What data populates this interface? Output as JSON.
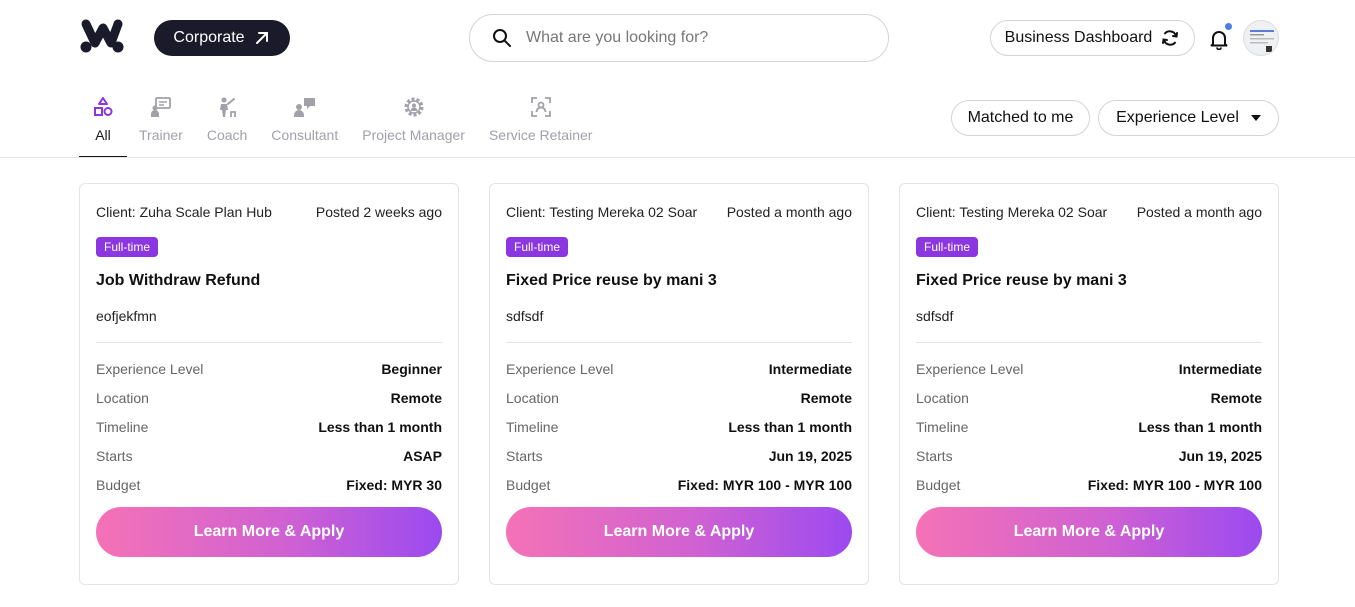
{
  "header": {
    "corporate_label": "Corporate",
    "search_placeholder": "What are you looking for?",
    "business_dashboard_label": "Business Dashboard"
  },
  "tabs": [
    {
      "label": "All",
      "icon": "shapes-icon",
      "active": true
    },
    {
      "label": "Trainer",
      "icon": "trainer-icon"
    },
    {
      "label": "Coach",
      "icon": "coach-icon"
    },
    {
      "label": "Consultant",
      "icon": "consultant-icon"
    },
    {
      "label": "Project Manager",
      "icon": "gear-user-icon"
    },
    {
      "label": "Service Retainer",
      "icon": "retainer-icon"
    }
  ],
  "filters": {
    "matched_label": "Matched to me",
    "experience_label": "Experience Level"
  },
  "colors": {
    "accent": "#8b36e0",
    "button_gradient_start": "#f472b6",
    "button_gradient_end": "#9b4af0",
    "notification_dot": "#4a7cf0"
  },
  "cards": [
    {
      "client": "Client: Zuha Scale Plan Hub",
      "posted": "Posted 2 weeks ago",
      "badge": "Full-time",
      "title": "Job Withdraw Refund",
      "desc": "eofjekfmn",
      "rows": [
        {
          "k": "Experience Level",
          "v": "Beginner"
        },
        {
          "k": "Location",
          "v": "Remote"
        },
        {
          "k": "Timeline",
          "v": "Less than 1 month"
        },
        {
          "k": "Starts",
          "v": "ASAP"
        },
        {
          "k": "Budget",
          "v": "Fixed: MYR 30"
        }
      ],
      "button": "Learn More & Apply"
    },
    {
      "client": "Client: Testing Mereka 02 Soar",
      "posted": "Posted a month ago",
      "badge": "Full-time",
      "title": "Fixed Price reuse by mani 3",
      "desc": "sdfsdf",
      "rows": [
        {
          "k": "Experience Level",
          "v": "Intermediate"
        },
        {
          "k": "Location",
          "v": "Remote"
        },
        {
          "k": "Timeline",
          "v": "Less than 1 month"
        },
        {
          "k": "Starts",
          "v": "Jun 19, 2025"
        },
        {
          "k": "Budget",
          "v": "Fixed: MYR 100 - MYR 100"
        }
      ],
      "button": "Learn More & Apply"
    },
    {
      "client": "Client: Testing Mereka 02 Soar",
      "posted": "Posted a month ago",
      "badge": "Full-time",
      "title": "Fixed Price reuse by mani 3",
      "desc": "sdfsdf",
      "rows": [
        {
          "k": "Experience Level",
          "v": "Intermediate"
        },
        {
          "k": "Location",
          "v": "Remote"
        },
        {
          "k": "Timeline",
          "v": "Less than 1 month"
        },
        {
          "k": "Starts",
          "v": "Jun 19, 2025"
        },
        {
          "k": "Budget",
          "v": "Fixed: MYR 100 - MYR 100"
        }
      ],
      "button": "Learn More & Apply"
    }
  ]
}
